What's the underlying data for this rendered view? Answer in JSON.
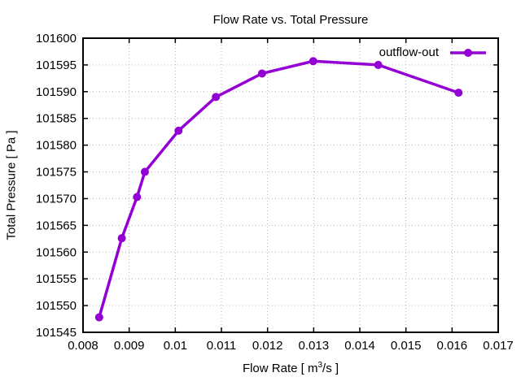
{
  "chart_data": {
    "type": "line",
    "title": "Flow Rate vs. Total Pressure",
    "xlabel": "Flow Rate [ m^3/s ]",
    "xlabel_parts": {
      "pre": "Flow Rate [ m",
      "sup": "3",
      "post": "/s ]"
    },
    "ylabel": "Total Pressure [ Pa ]",
    "xlim": [
      0.008,
      0.017
    ],
    "ylim": [
      101545,
      101600
    ],
    "xtick_labels": [
      "0.008",
      "0.009",
      "0.01",
      "0.011",
      "0.012",
      "0.013",
      "0.014",
      "0.015",
      "0.016",
      "0.017"
    ],
    "ytick_labels": [
      "101545",
      "101550",
      "101555",
      "101560",
      "101565",
      "101570",
      "101575",
      "101580",
      "101585",
      "101590",
      "101595",
      "101600"
    ],
    "grid": "dotted",
    "legend": {
      "position": "top-right-inside",
      "entries": [
        "outflow-out"
      ]
    },
    "series": [
      {
        "name": "outflow-out",
        "color": "#9400D3",
        "marker": "filled-circle",
        "points": [
          [
            0.00835,
            101547.8
          ],
          [
            0.00884,
            101562.6
          ],
          [
            0.00917,
            101570.3
          ],
          [
            0.00934,
            101575.0
          ],
          [
            0.01007,
            101582.7
          ],
          [
            0.01088,
            101589.0
          ],
          [
            0.01188,
            101593.4
          ],
          [
            0.01299,
            101595.7
          ],
          [
            0.0144,
            101595.0
          ],
          [
            0.01614,
            101589.8
          ]
        ]
      }
    ]
  },
  "colors": {
    "background": "#ffffff",
    "text": "#000000",
    "border": "#000000",
    "grid": "#b3b3b3",
    "series": "#9400D3"
  }
}
